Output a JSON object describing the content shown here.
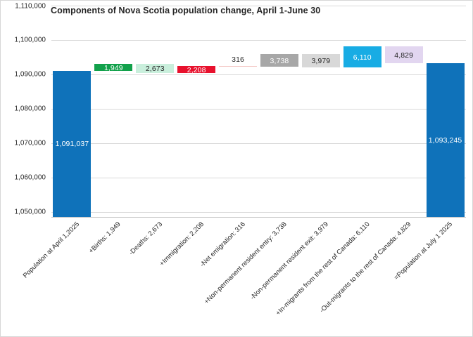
{
  "chart_data": {
    "type": "bar",
    "subtype": "waterfall",
    "title": "Components of Nova Scotia population change, April 1-June 30",
    "legend": false,
    "grid": true,
    "y_axis": {
      "min": 1048571,
      "max": 1110000,
      "ticks": [
        {
          "label": "1,110,000",
          "value": 1110000
        },
        {
          "label": "1,100,000",
          "value": 1100000
        },
        {
          "label": "1,090,000",
          "value": 1090000
        },
        {
          "label": "1,080,000",
          "value": 1080000
        },
        {
          "label": "1,070,000",
          "value": 1070000
        },
        {
          "label": "1,060,000",
          "value": 1060000
        },
        {
          "label": "1,050,000",
          "value": 1050000
        }
      ]
    },
    "bars": [
      {
        "category": "Population at April 1,2025",
        "value": 1091037,
        "label": "1,091,037",
        "from": 1048571,
        "to": 1091037,
        "color": "#0f72ba",
        "text_color": "#ffffff",
        "label_placement": "center"
      },
      {
        "category": "+Births: 1,949",
        "value": 1949,
        "label": "1,949",
        "from": 1091037,
        "to": 1092986,
        "color": "#12a14b",
        "text_color": "#ffffff",
        "label_placement": "center"
      },
      {
        "category": "-Deaths: 2,673",
        "value": 2673,
        "label": "2,673",
        "from": 1092986,
        "to": 1090313,
        "color": "#c9efdc",
        "text_color": "#262626",
        "label_placement": "center"
      },
      {
        "category": "+Immigration: 2,208",
        "value": 2208,
        "label": "2,208",
        "from": 1090313,
        "to": 1092521,
        "color": "#e8112d",
        "text_color": "#ffffff",
        "label_placement": "center"
      },
      {
        "category": "-Net emigration: 316",
        "value": 316,
        "label": "316",
        "from": 1092521,
        "to": 1092205,
        "color": "#f3c6c3",
        "text_color": "#262626",
        "label_placement": "above"
      },
      {
        "category": "+Non-permanent resident entry: 3,738",
        "value": 3738,
        "label": "3,738",
        "from": 1092205,
        "to": 1095943,
        "color": "#a7a7a7",
        "text_color": "#ffffff",
        "label_placement": "center"
      },
      {
        "category": "-Non-permanent resident exit: 3,979",
        "value": 3979,
        "label": "3,979",
        "from": 1095943,
        "to": 1091964,
        "color": "#d8d8d8",
        "text_color": "#262626",
        "label_placement": "center"
      },
      {
        "category": "+In-migrants from the rest of Canada: 6,110",
        "value": 6110,
        "label": "6,110",
        "from": 1091964,
        "to": 1098074,
        "color": "#18ace4",
        "text_color": "#ffffff",
        "label_placement": "center"
      },
      {
        "category": "-Out-migrants to the rest of Canada: 4,829",
        "value": 4829,
        "label": "4,829",
        "from": 1098074,
        "to": 1093245,
        "color": "#e2d6f0",
        "text_color": "#262626",
        "label_placement": "center"
      },
      {
        "category": "=Population at July 1 2025",
        "value": 1093245,
        "label": "1,093,245",
        "from": 1093245,
        "to": 1048571,
        "color": "#0f72ba",
        "text_color": "#ffffff",
        "label_placement": "center"
      }
    ],
    "colors": {
      "start_end": "#0f72ba",
      "gridline": "#d9d9d9",
      "axis_line": "#c6c6c6",
      "title_text": "#262626",
      "tick_text": "#262626"
    }
  }
}
